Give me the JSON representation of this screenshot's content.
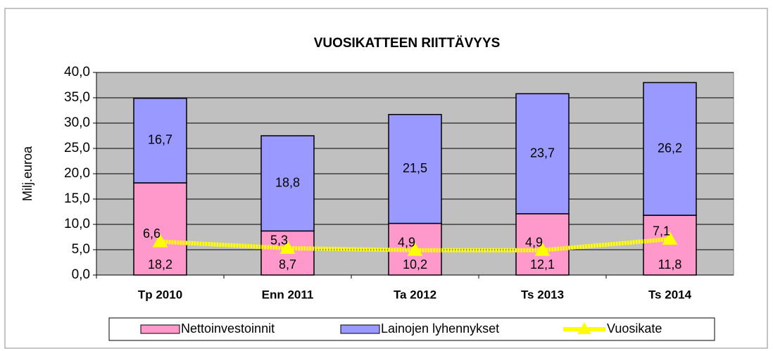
{
  "chart_data": {
    "type": "bar",
    "stacked": true,
    "title": "VUOSIKATTEEN RIITTÄVYYS",
    "y_label": "Milj.euroa",
    "categories": [
      "Tp 2010",
      "Enn 2011",
      "Ta 2012",
      "Ts 2013",
      "Ts 2014"
    ],
    "series": [
      {
        "name": "Nettoinvestoinnit",
        "color": "#ff99cc",
        "values": [
          18.2,
          8.7,
          10.2,
          12.1,
          11.8
        ],
        "value_labels": [
          "18,2",
          "8,7",
          "10,2",
          "12,1",
          "11,8"
        ]
      },
      {
        "name": "Lainojen lyhennykset",
        "color": "#9999ff",
        "values": [
          16.7,
          18.8,
          21.5,
          23.7,
          26.2
        ],
        "value_labels": [
          "16,7",
          "18,8",
          "21,5",
          "23,7",
          "26,2"
        ]
      },
      {
        "name": "Vuosikate",
        "type": "line",
        "color": "#ffff00",
        "values": [
          6.6,
          5.3,
          4.9,
          4.9,
          7.1
        ],
        "value_labels": [
          "6,6",
          "5,3",
          "4,9",
          "4,9",
          "7,1"
        ]
      }
    ],
    "ylim": [
      0,
      40
    ],
    "yticks": [
      {
        "value": 0,
        "label": "0,0"
      },
      {
        "value": 5,
        "label": "5,0"
      },
      {
        "value": 10,
        "label": "10,0"
      },
      {
        "value": 15,
        "label": "15,0"
      },
      {
        "value": 20,
        "label": "20,0"
      },
      {
        "value": 25,
        "label": "25,0"
      },
      {
        "value": 30,
        "label": "30,0"
      },
      {
        "value": 35,
        "label": "35,0"
      },
      {
        "value": 40,
        "label": "40,0"
      }
    ],
    "grid": true,
    "legend": "bottom"
  }
}
